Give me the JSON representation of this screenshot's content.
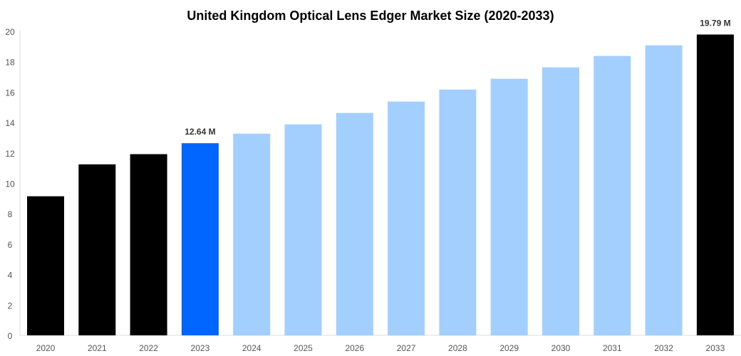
{
  "chart_data": {
    "type": "bar",
    "title": "United Kingdom Optical Lens Edger Market Size (2020-2033)",
    "xlabel": "",
    "ylabel": "",
    "ylim": [
      0,
      20
    ],
    "yticks": [
      0,
      2,
      4,
      6,
      8,
      10,
      12,
      14,
      16,
      18,
      20
    ],
    "grid": false,
    "categories": [
      "2020",
      "2021",
      "2022",
      "2023",
      "2024",
      "2025",
      "2026",
      "2027",
      "2028",
      "2029",
      "2030",
      "2031",
      "2032",
      "2033"
    ],
    "values": [
      9.15,
      11.25,
      11.92,
      12.64,
      13.27,
      13.88,
      14.63,
      15.38,
      16.17,
      16.88,
      17.63,
      18.38,
      19.08,
      19.79
    ],
    "bar_colors": [
      "#000000",
      "#000000",
      "#000000",
      "#0066ff",
      "#a3cfff",
      "#a3cfff",
      "#a3cfff",
      "#a3cfff",
      "#a3cfff",
      "#a3cfff",
      "#a3cfff",
      "#a3cfff",
      "#a3cfff",
      "#000000"
    ],
    "data_labels": {
      "2023": "12.64 M",
      "2033": "19.79 M"
    }
  }
}
